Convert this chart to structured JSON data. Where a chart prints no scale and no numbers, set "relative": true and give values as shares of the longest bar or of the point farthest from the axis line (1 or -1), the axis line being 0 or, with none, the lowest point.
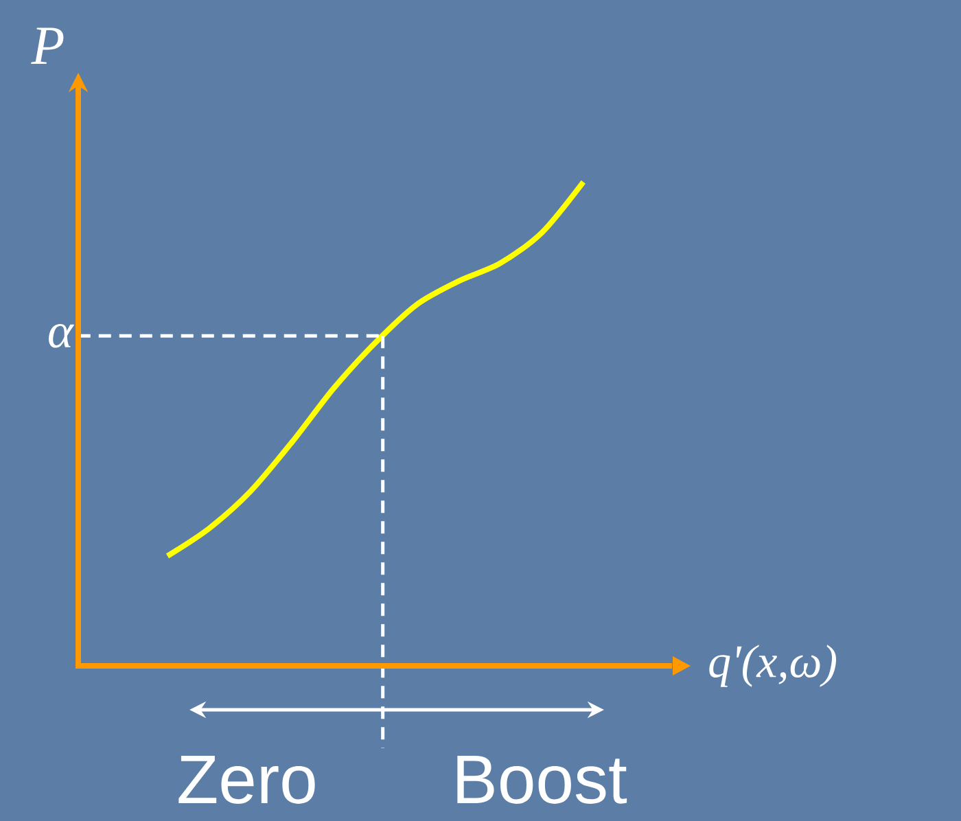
{
  "chart_data": {
    "type": "line",
    "relative": true,
    "xlabel": "q'(x,ω)",
    "ylabel": "P",
    "categories": [
      null,
      null,
      null,
      null,
      null,
      null,
      null,
      null,
      null,
      null,
      null
    ],
    "series": [
      {
        "color": "#ffff00",
        "values": [
          0.227,
          0.284,
          0.361,
          0.463,
          0.574,
          0.668,
          0.747,
          0.795,
          0.832,
          0.895,
          1
        ]
      }
    ],
    "ref_lines": [
      {
        "axis": "y",
        "value": 0.682,
        "label": "α",
        "color": "#ffffff",
        "line_style": "dashed"
      }
    ],
    "annotations": [
      "Zero",
      "Boost"
    ],
    "marker": "none"
  }
}
